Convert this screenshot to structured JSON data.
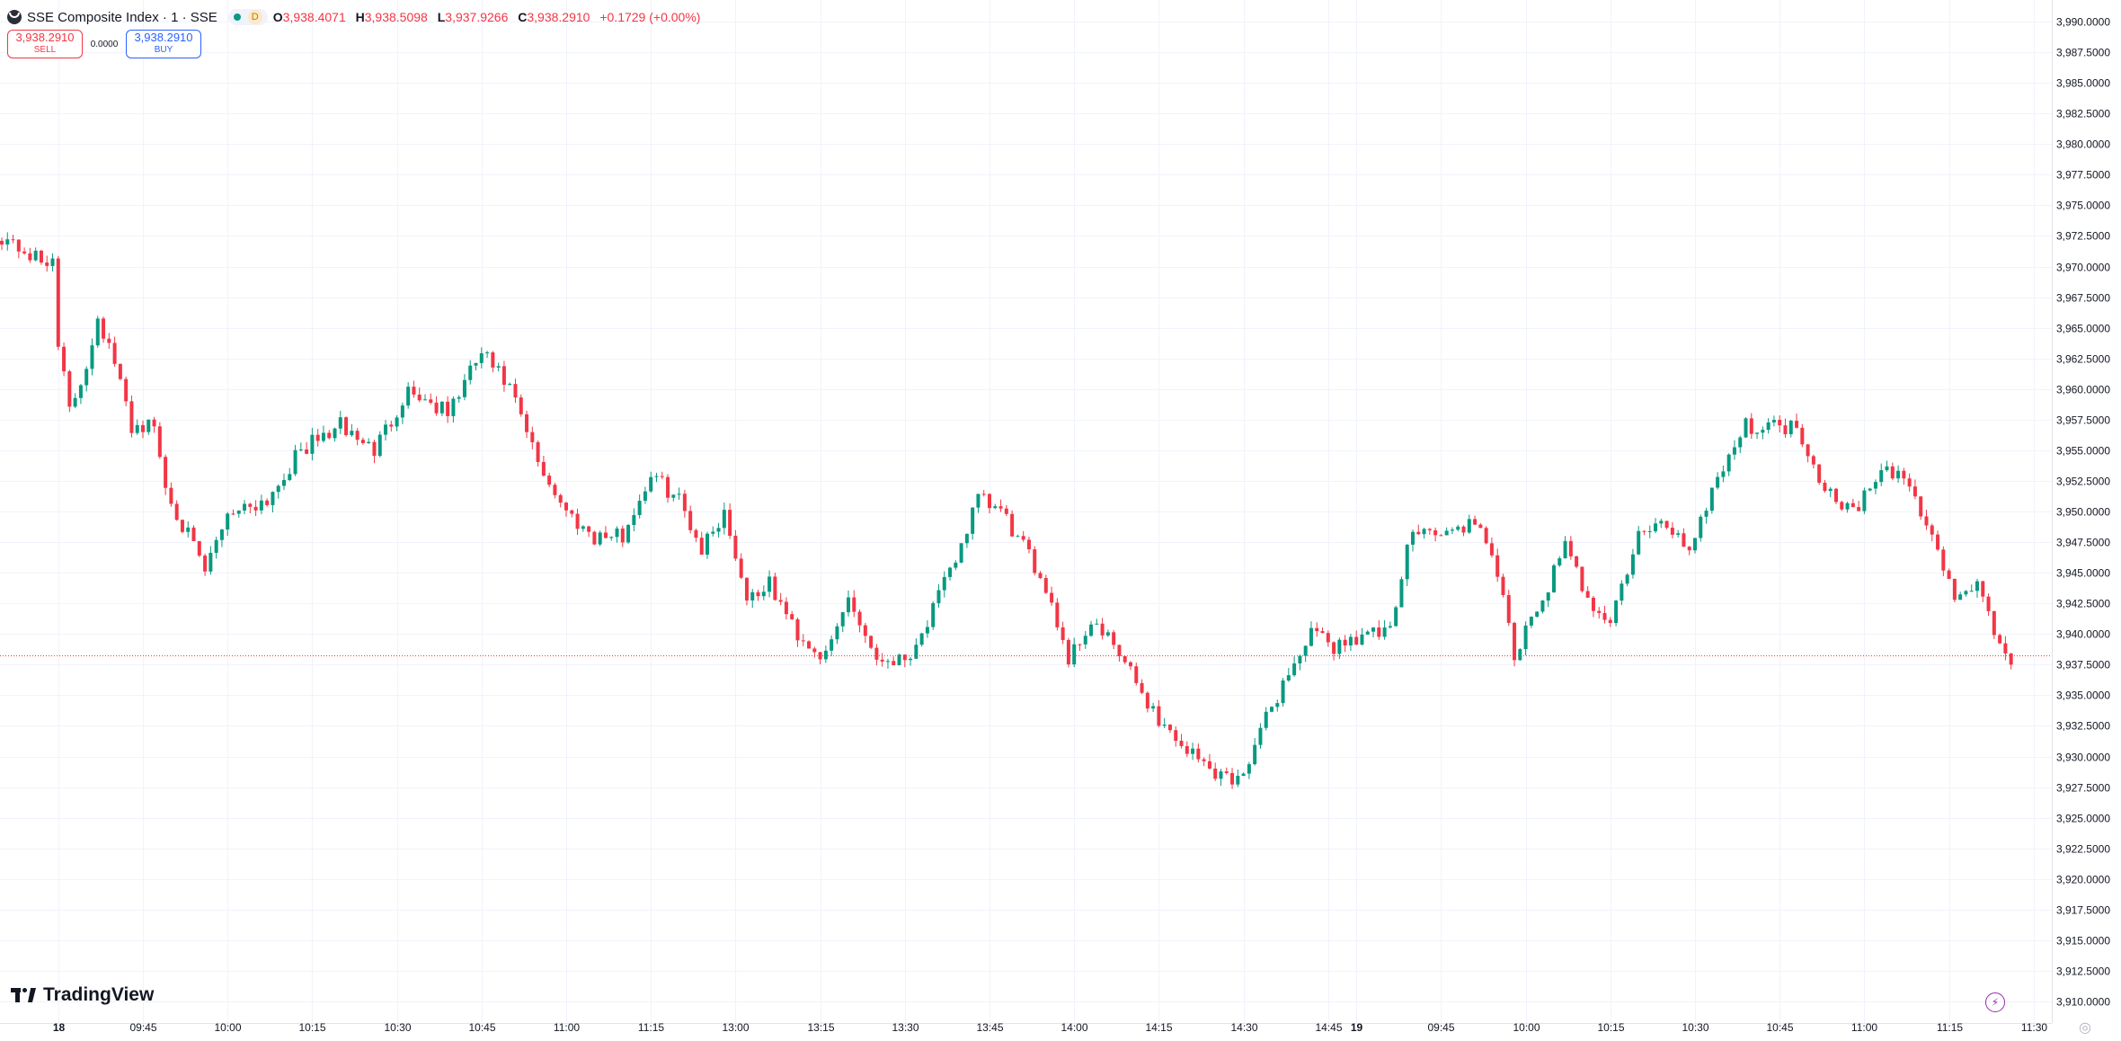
{
  "symbol": {
    "name": "SSE Composite Index · 1 · SSE",
    "status_icon": "market-open-dot",
    "session_badge": "D"
  },
  "ohlc": {
    "o_label": "O",
    "o": "3,938.4071",
    "h_label": "H",
    "h": "3,938.5098",
    "l_label": "L",
    "l": "3,937.9266",
    "c_label": "C",
    "c": "3,938.2910",
    "change": "+0.1729 (+0.00%)"
  },
  "trade": {
    "sell_price": "3,938.2910",
    "sell_label": "SELL",
    "spread": "0.0000",
    "buy_price": "3,938.2910",
    "buy_label": "BUY"
  },
  "watermark": "TradingView",
  "corner_icon": "camera-snapshot-icon",
  "chart_data": {
    "type": "candlestick",
    "title": "SSE Composite Index · 1 · SSE",
    "colors": {
      "up": "#089981",
      "down": "#f23645",
      "last_price": "#f23645"
    },
    "ylim": [
      3909,
      3991
    ],
    "y_ticks": [
      "3,990.0000",
      "3,987.5000",
      "3,985.0000",
      "3,982.5000",
      "3,980.0000",
      "3,977.5000",
      "3,975.0000",
      "3,972.5000",
      "3,970.0000",
      "3,967.5000",
      "3,965.0000",
      "3,962.5000",
      "3,960.0000",
      "3,957.5000",
      "3,955.0000",
      "3,952.5000",
      "3,950.0000",
      "3,947.5000",
      "3,945.0000",
      "3,942.5000",
      "3,940.0000",
      "3,937.5000",
      "3,935.0000",
      "3,932.5000",
      "3,930.0000",
      "3,927.5000",
      "3,925.0000",
      "3,922.5000",
      "3,920.0000",
      "3,917.5000",
      "3,915.0000",
      "3,912.5000",
      "3,910.0000"
    ],
    "x_ticks": [
      {
        "label": "18",
        "bold": true
      },
      {
        "label": "09:45"
      },
      {
        "label": "10:00"
      },
      {
        "label": "10:15"
      },
      {
        "label": "10:30"
      },
      {
        "label": "10:45"
      },
      {
        "label": "11:00"
      },
      {
        "label": "11:15"
      },
      {
        "label": "13:00"
      },
      {
        "label": "13:15"
      },
      {
        "label": "13:30"
      },
      {
        "label": "13:45"
      },
      {
        "label": "14:00"
      },
      {
        "label": "14:15"
      },
      {
        "label": "14:30"
      },
      {
        "label": "14:45"
      },
      {
        "label": "19",
        "bold": true
      },
      {
        "label": "09:45"
      },
      {
        "label": "10:00"
      },
      {
        "label": "10:15"
      },
      {
        "label": "10:30"
      },
      {
        "label": "10:45"
      },
      {
        "label": "11:00"
      },
      {
        "label": "11:15"
      },
      {
        "label": "11:30"
      }
    ],
    "last_price": 3938.291,
    "last_price_label": "3,938.2910",
    "close_path": [
      [
        0,
        3972.5
      ],
      [
        8,
        3970
      ],
      [
        9,
        3971
      ],
      [
        10,
        3964
      ],
      [
        12,
        3958
      ],
      [
        15,
        3962
      ],
      [
        17,
        3966
      ],
      [
        20,
        3962
      ],
      [
        23,
        3957
      ],
      [
        27,
        3957
      ],
      [
        29,
        3952
      ],
      [
        32,
        3949
      ],
      [
        36,
        3945
      ],
      [
        40,
        3950
      ],
      [
        47,
        3951
      ],
      [
        53,
        3955
      ],
      [
        60,
        3957
      ],
      [
        66,
        3955
      ],
      [
        72,
        3960
      ],
      [
        79,
        3958
      ],
      [
        85,
        3963
      ],
      [
        90,
        3960
      ],
      [
        95,
        3954
      ],
      [
        100,
        3950
      ],
      [
        105,
        3948
      ],
      [
        110,
        3948
      ],
      [
        115,
        3953
      ],
      [
        120,
        3951
      ],
      [
        124,
        3947
      ],
      [
        128,
        3950
      ],
      [
        132,
        3943
      ],
      [
        136,
        3944
      ],
      [
        141,
        3940
      ],
      [
        146,
        3938
      ],
      [
        150,
        3943
      ],
      [
        155,
        3938
      ],
      [
        160,
        3938
      ],
      [
        163,
        3940
      ],
      [
        168,
        3945
      ],
      [
        173,
        3951
      ],
      [
        177,
        3950
      ],
      [
        181,
        3947
      ],
      [
        185,
        3944
      ],
      [
        189,
        3938
      ],
      [
        193,
        3941
      ],
      [
        197,
        3939
      ],
      [
        201,
        3936
      ],
      [
        205,
        3933
      ],
      [
        209,
        3931
      ],
      [
        214,
        3929
      ],
      [
        219,
        3928
      ],
      [
        223,
        3932
      ],
      [
        227,
        3936
      ],
      [
        232,
        3940
      ],
      [
        236,
        3939
      ],
      [
        241,
        3940
      ],
      [
        246,
        3940
      ],
      [
        250,
        3949
      ],
      [
        255,
        3948
      ],
      [
        260,
        3949
      ],
      [
        264,
        3947
      ],
      [
        268,
        3938
      ],
      [
        273,
        3943
      ],
      [
        277,
        3947
      ],
      [
        281,
        3943
      ],
      [
        285,
        3941
      ],
      [
        290,
        3948
      ],
      [
        295,
        3949
      ],
      [
        299,
        3947
      ],
      [
        304,
        3953
      ],
      [
        309,
        3957
      ],
      [
        314,
        3957
      ],
      [
        318,
        3957
      ],
      [
        323,
        3952
      ],
      [
        328,
        3950
      ],
      [
        333,
        3953
      ],
      [
        337,
        3953
      ],
      [
        342,
        3948
      ],
      [
        346,
        3943
      ],
      [
        350,
        3944
      ],
      [
        353,
        3940
      ],
      [
        356,
        3938
      ]
    ],
    "bar_count": 357,
    "first_bar_of_day_18": 10,
    "first_bar_of_day_19": 240
  }
}
